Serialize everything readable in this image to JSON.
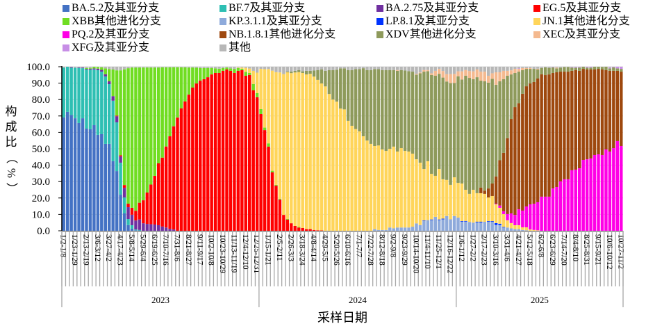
{
  "chart_data": {
    "type": "bar",
    "stacked": true,
    "title": "",
    "ylabel": "构成比（%）",
    "xlabel": "采样日期",
    "ylim": [
      0,
      100
    ],
    "y_ticks": [
      "0.0",
      "10.0",
      "20.0",
      "30.0",
      "40.0",
      "50.0",
      "60.0",
      "70.0",
      "80.0",
      "90.0",
      "100.0"
    ],
    "grid": true,
    "legend_position": "top",
    "week_count": 148,
    "x_labels": [
      "1/2-1/8",
      "1/23-1/29",
      "2/13-2/19",
      "3/6-3/12",
      "3/27-4/2",
      "4/17-4/23",
      "5/8-5/14",
      "5/29-6/4",
      "6/19-6/25",
      "7/10-7/16",
      "7/31-8/6",
      "8/21-8/27",
      "9/11-9/17",
      "10/2-10/8",
      "10/23-10/29",
      "11/13-11/19",
      "12/4-12/10",
      "12/25-12/31",
      "1/15-1/21",
      "2/5-2/11",
      "2/26-3/3",
      "3/18-3/24",
      "4/8-4/14",
      "4/29-5/5",
      "5/20-5/26",
      "6/10-6/16",
      "7/1-7/7",
      "7/22-7/28",
      "8/12-8/18",
      "9/2-9/8",
      "9/23-9/29",
      "10/14-10/20",
      "11/4-11/10",
      "11/25-12/1",
      "12/16-12/22",
      "1/6-1/12",
      "1/27-2/2",
      "2/17-2/23",
      "3/10-3/16",
      "3/31-4/6",
      "4/21-4/27",
      "5/12-5/18",
      "6/2-6/8",
      "6/23-6/29",
      "7/14-7/20",
      "8/4-8/10",
      "8/25-8/31",
      "9/15-9/21",
      "10/6-10/12",
      "10/27-11/2"
    ],
    "years": [
      {
        "label": "2023",
        "first_week": 0,
        "last_week": 51
      },
      {
        "label": "2024",
        "first_week": 52,
        "last_week": 103
      },
      {
        "label": "2025",
        "first_week": 104,
        "last_week": 147
      }
    ],
    "series": [
      {
        "name": "BA.5.2及其亚分支",
        "color": "#4472C4",
        "start": 0,
        "values": [
          69.1,
          72.5,
          70.6,
          68.6,
          65.7,
          68.6,
          62.3,
          61.9,
          64.4,
          58.5,
          58.9,
          53,
          53,
          42.4,
          36.4,
          22,
          10.6,
          3.5,
          1.3,
          0.3,
          0.2
        ]
      },
      {
        "name": "BF.7及其亚分支",
        "color": "#2EBFB3",
        "start": 0,
        "values": [
          30.4,
          27.5,
          28.8,
          30.8,
          33.6,
          30.5,
          36,
          36.3,
          34,
          39.4,
          38.1,
          41.1,
          36.4,
          36.9,
          29.7,
          19.5,
          9.7,
          3.7,
          2.1,
          0.5,
          0.3
        ]
      },
      {
        "name": "BA.2.75及其亚分支",
        "color": "#7030A0",
        "start": 0,
        "values": [
          0,
          0,
          0.4,
          0,
          0.3,
          0.4,
          0.4,
          0.6,
          0.6,
          0.9,
          1.1,
          1.3,
          1.7,
          2.8,
          3.7,
          3.8,
          5.9,
          7.2,
          6.4,
          5.5,
          6.4,
          4.6,
          4.2,
          4,
          3.8,
          3.4,
          2.6,
          2,
          1.2,
          0.8
        ]
      },
      {
        "name": "EG.5及其亚分支",
        "color": "#FF0000",
        "start": 14,
        "values": [
          0.4,
          0.7,
          1.7,
          2.1,
          4.2,
          5.9,
          10.2,
          14,
          19.1,
          24.2,
          29.7,
          37.7,
          42,
          49.4,
          56.4,
          62.9,
          69,
          74.6,
          78.8,
          83,
          87.3,
          89.8,
          91.5,
          92.4,
          93.6,
          95.3,
          96.2,
          96.2,
          97.5,
          98.3,
          97.5,
          96.2,
          97.5,
          97.9,
          94.5,
          95,
          85.6,
          81.4,
          71.2,
          61.4,
          51.3,
          35.6,
          27.5,
          19,
          9.7,
          6.8,
          4.6,
          3,
          2,
          1.7,
          1,
          1,
          0.5,
          0.3,
          0.2
        ]
      },
      {
        "name": "XBB其他进化分支",
        "color": "#70DD22",
        "start": 6,
        "values": [
          0.5,
          0.5,
          1,
          1,
          1.5,
          3.6,
          7.5,
          16.2,
          27.6,
          51.8,
          70.5,
          82.6,
          85.5,
          87.3,
          82.4,
          80.9,
          76.2,
          71.3,
          66,
          58.4,
          55,
          48.2,
          42,
          36,
          30.7,
          25,
          20.8,
          16.5,
          12.2,
          9.6,
          7.7,
          6.8,
          5.6,
          3.9,
          2.8,
          2.6,
          1.7,
          1.2,
          1.5,
          2.5,
          1.7,
          0.9,
          2.4,
          1.2,
          3.9,
          2.5,
          3,
          1.5,
          2,
          1,
          0.5,
          0.5,
          0,
          0.5,
          0,
          0,
          0.4
        ]
      },
      {
        "name": "KP.3.1.1及其亚分支",
        "color": "#8EAADB",
        "start": 82,
        "values": [
          1,
          0.5,
          0.5,
          0.5,
          2,
          1.5,
          2,
          2,
          2,
          2,
          2.5,
          4.5,
          3.5,
          6,
          6.5,
          6.5,
          8.5,
          6.5,
          7,
          9,
          7,
          9,
          8,
          5.5,
          5.6,
          5.4,
          5,
          5.1,
          5,
          5.5,
          5.5,
          5.5,
          3.5,
          3.5,
          2,
          2,
          1.5,
          1,
          1,
          0.5,
          0.3
        ]
      },
      {
        "name": "LP.8.1及其亚分支",
        "color": "#0033FF",
        "start": 95,
        "values": [
          0.3,
          0,
          0.4,
          0,
          0.4,
          0.4,
          0,
          0,
          0,
          0,
          0.4,
          0.4,
          0,
          0,
          0.4,
          0.5,
          0,
          0.4,
          0.4,
          1.2,
          0.8,
          0.3
        ]
      },
      {
        "name": "JN.1其他进化分支",
        "color": "#FFD55A",
        "start": 46,
        "values": [
          0.3,
          0.7,
          2.4,
          2.7,
          8,
          12.5,
          24.5,
          35.6,
          45.3,
          61,
          68.7,
          77,
          85.8,
          89.3,
          91.5,
          93.5,
          94.3,
          94.5,
          94.3,
          94.7,
          93.5,
          91.7,
          89.6,
          88,
          83.4,
          80,
          78.7,
          74.5,
          74,
          67,
          64,
          62,
          60.6,
          57.6,
          55,
          53,
          50.7,
          51.5,
          49.1,
          48.2,
          48,
          49.8,
          46.3,
          48.4,
          46.7,
          46.3,
          44.5,
          39.1,
          38,
          31.4,
          35.9,
          27.8,
          25,
          30.8,
          24,
          22,
          21,
          23.6,
          21.2,
          22.9,
          19,
          17.1,
          20,
          17.4,
          17.4,
          17,
          14.4,
          15.3,
          11.4,
          9.7,
          7.9,
          4.4,
          3.2,
          2.4,
          2.4,
          1.6,
          1.8,
          0.8,
          0.5,
          0.3
        ]
      },
      {
        "name": "PQ.2及其亚分支",
        "color": "#FF00E6",
        "start": 114,
        "values": [
          0.4,
          1.4,
          1.7,
          3.8,
          5.9,
          6.3,
          9.7,
          10.2,
          12.7,
          15.3,
          16,
          17.1,
          20.8,
          20.8,
          20.8,
          25.8,
          26.7,
          30.1,
          31.4,
          31.4,
          36.9,
          37.3,
          38.1,
          43.2,
          43.6,
          44.1,
          46.2,
          46.6,
          46.2,
          49.6,
          48.3,
          50.4,
          54.7,
          51.7
        ]
      },
      {
        "name": "NB.1.8.1其他进化分支",
        "color": "#9E480E",
        "start": 110,
        "values": [
          3.4,
          2,
          5.5,
          7.6,
          16.6,
          27.6,
          35.6,
          46.2,
          57.6,
          65.7,
          64.7,
          71.2,
          73.3,
          73.7,
          74.2,
          75.4,
          74.6,
          74.1,
          74.5,
          70.4,
          69.9,
          66.9,
          65.6,
          65.6,
          60.6,
          60.6,
          59.4,
          55.5,
          54.7,
          54.2,
          52.1,
          52.1,
          52.1,
          48.3,
          49.2,
          47.1,
          42.8,
          45.3
        ]
      },
      {
        "name": "XDV其他进化分支",
        "color": "#8E9A5B",
        "start": 59,
        "values": [
          0.5,
          1,
          1,
          1.3,
          1,
          2.2,
          1.8,
          3.7,
          6,
          8.5,
          9.5,
          14.5,
          18,
          19.5,
          24.5,
          25,
          31,
          34,
          36.5,
          38,
          41.5,
          43,
          45,
          46.8,
          46.5,
          48.4,
          49.3,
          48,
          46.7,
          49.2,
          47.6,
          49,
          49,
          50,
          51.5,
          54.5,
          59.3,
          54.9,
          60.3,
          61,
          58,
          62,
          60,
          62,
          57.5,
          65,
          63.4,
          69.5,
          70.7,
          67.4,
          70.7,
          65.2,
          66.6,
          64.5,
          63.8,
          55.9,
          48.1,
          44.9,
          38.1,
          27.1,
          20.8,
          19.2,
          14.4,
          10.6,
          8.9,
          8,
          5.5,
          3.8,
          4.7,
          4,
          3.4,
          2.4,
          2.4,
          2.8,
          2.8,
          2,
          1.5,
          2,
          1.3,
          1.2,
          1.2,
          1.7,
          1.3,
          1.6,
          2.1,
          1.5,
          2.1,
          1.5,
          1.7
        ]
      },
      {
        "name": "XEC及其亚分支",
        "color": "#F4B98F",
        "start": 88,
        "values": [
          0.5,
          0,
          0,
          0,
          0,
          0.5,
          0.5,
          1,
          0.7,
          1,
          3,
          3,
          4,
          4.5,
          5.5,
          5.5,
          3,
          5,
          3.5,
          4.2,
          4.8,
          4.7,
          5.5,
          5.9,
          4.2,
          3.4,
          7.6,
          5.5,
          5.1,
          3,
          2.5,
          2.5,
          1.7,
          1.3,
          0.5,
          0.5,
          0,
          0.5,
          0,
          0,
          0,
          0,
          0.5
        ]
      },
      {
        "name": "XFG及其亚分支",
        "color": "#C78EE6",
        "start": 120,
        "values": [
          0.3,
          0,
          0,
          0,
          0,
          0,
          0,
          0,
          0,
          0.3,
          0,
          0,
          0,
          0,
          0.3,
          0.4,
          0.4,
          0,
          0.5,
          0.5,
          0,
          0,
          0,
          0,
          0.5,
          0.5,
          1,
          1.3
        ]
      },
      {
        "name": "其他",
        "color": "#B7B7B7",
        "remainder_to_100": true
      }
    ]
  }
}
